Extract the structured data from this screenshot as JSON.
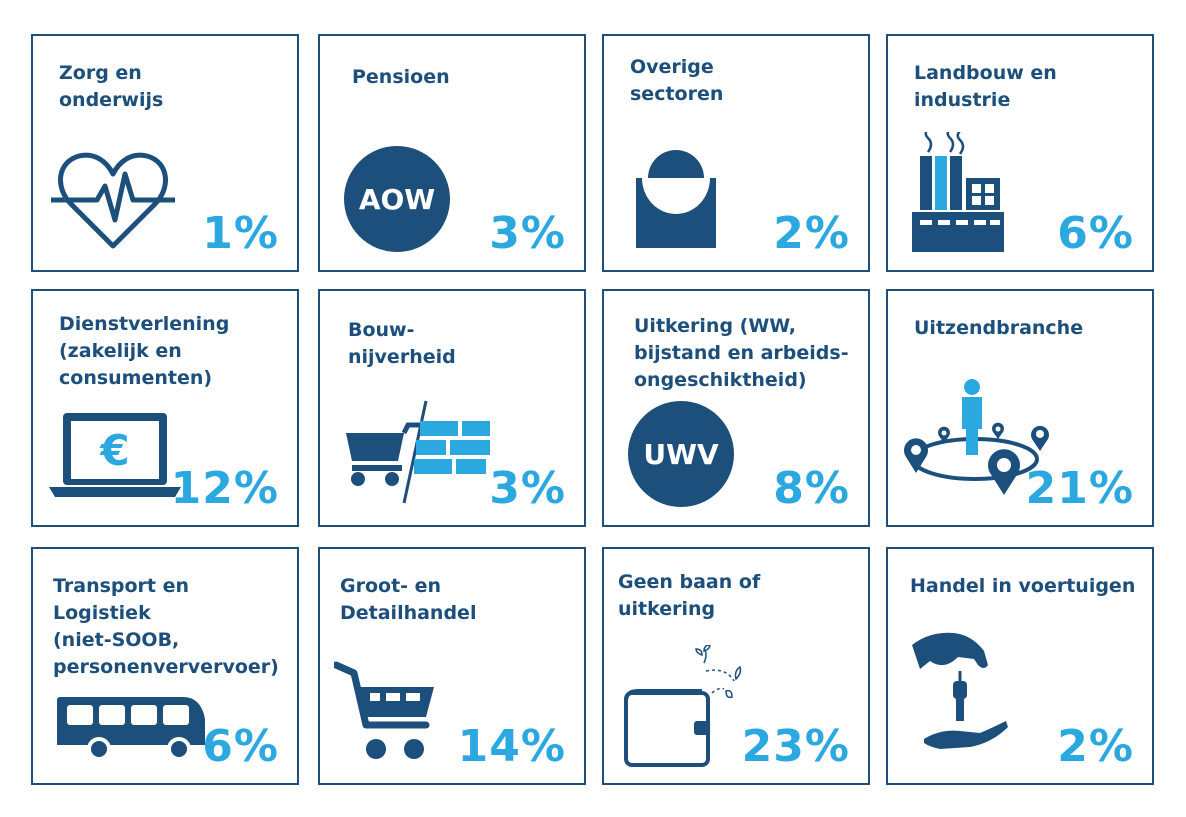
{
  "colors": {
    "dark_blue": "#1d4f7c",
    "light_blue": "#2ba8e0",
    "border": "#1f4e79"
  },
  "cards": [
    {
      "label": "Zorg en\nonderwijs",
      "percent": "1%",
      "icon": "heartbeat-icon"
    },
    {
      "label": "Pensioen",
      "percent": "3%",
      "icon": "aow-icon",
      "icon_text": "AOW"
    },
    {
      "label": "Overige\nsectoren",
      "percent": "2%",
      "icon": "sectors-icon"
    },
    {
      "label": "Landbouw en\nindustrie",
      "percent": "6%",
      "icon": "factory-icon"
    },
    {
      "label": "Dienstverlening\n(zakelijk en\nconsumenten)",
      "percent": "12%",
      "icon": "laptop-euro-icon",
      "icon_text": "€"
    },
    {
      "label": "Bouw-\nnijverheid",
      "percent": "3%",
      "icon": "wheelbarrow-bricks-icon"
    },
    {
      "label": "Uitkering (WW,\nbijstand en arbeids-\nongeschiktheid)",
      "percent": "8%",
      "icon": "uwv-icon",
      "icon_text": "UWV"
    },
    {
      "label": "Uitzendbranche",
      "percent": "21%",
      "icon": "person-locations-icon"
    },
    {
      "label": "Transport en Logistiek\n(niet-SOOB,\npersonenververvoer)",
      "percent": "6%",
      "icon": "bus-icon"
    },
    {
      "label": "Groot- en\nDetailhandel",
      "percent": "14%",
      "icon": "shopping-cart-icon"
    },
    {
      "label": "Geen baan of uitkering",
      "percent": "23%",
      "icon": "wallet-icon"
    },
    {
      "label": "Handel in voertuigen",
      "percent": "2%",
      "icon": "car-keys-hand-icon"
    }
  ]
}
